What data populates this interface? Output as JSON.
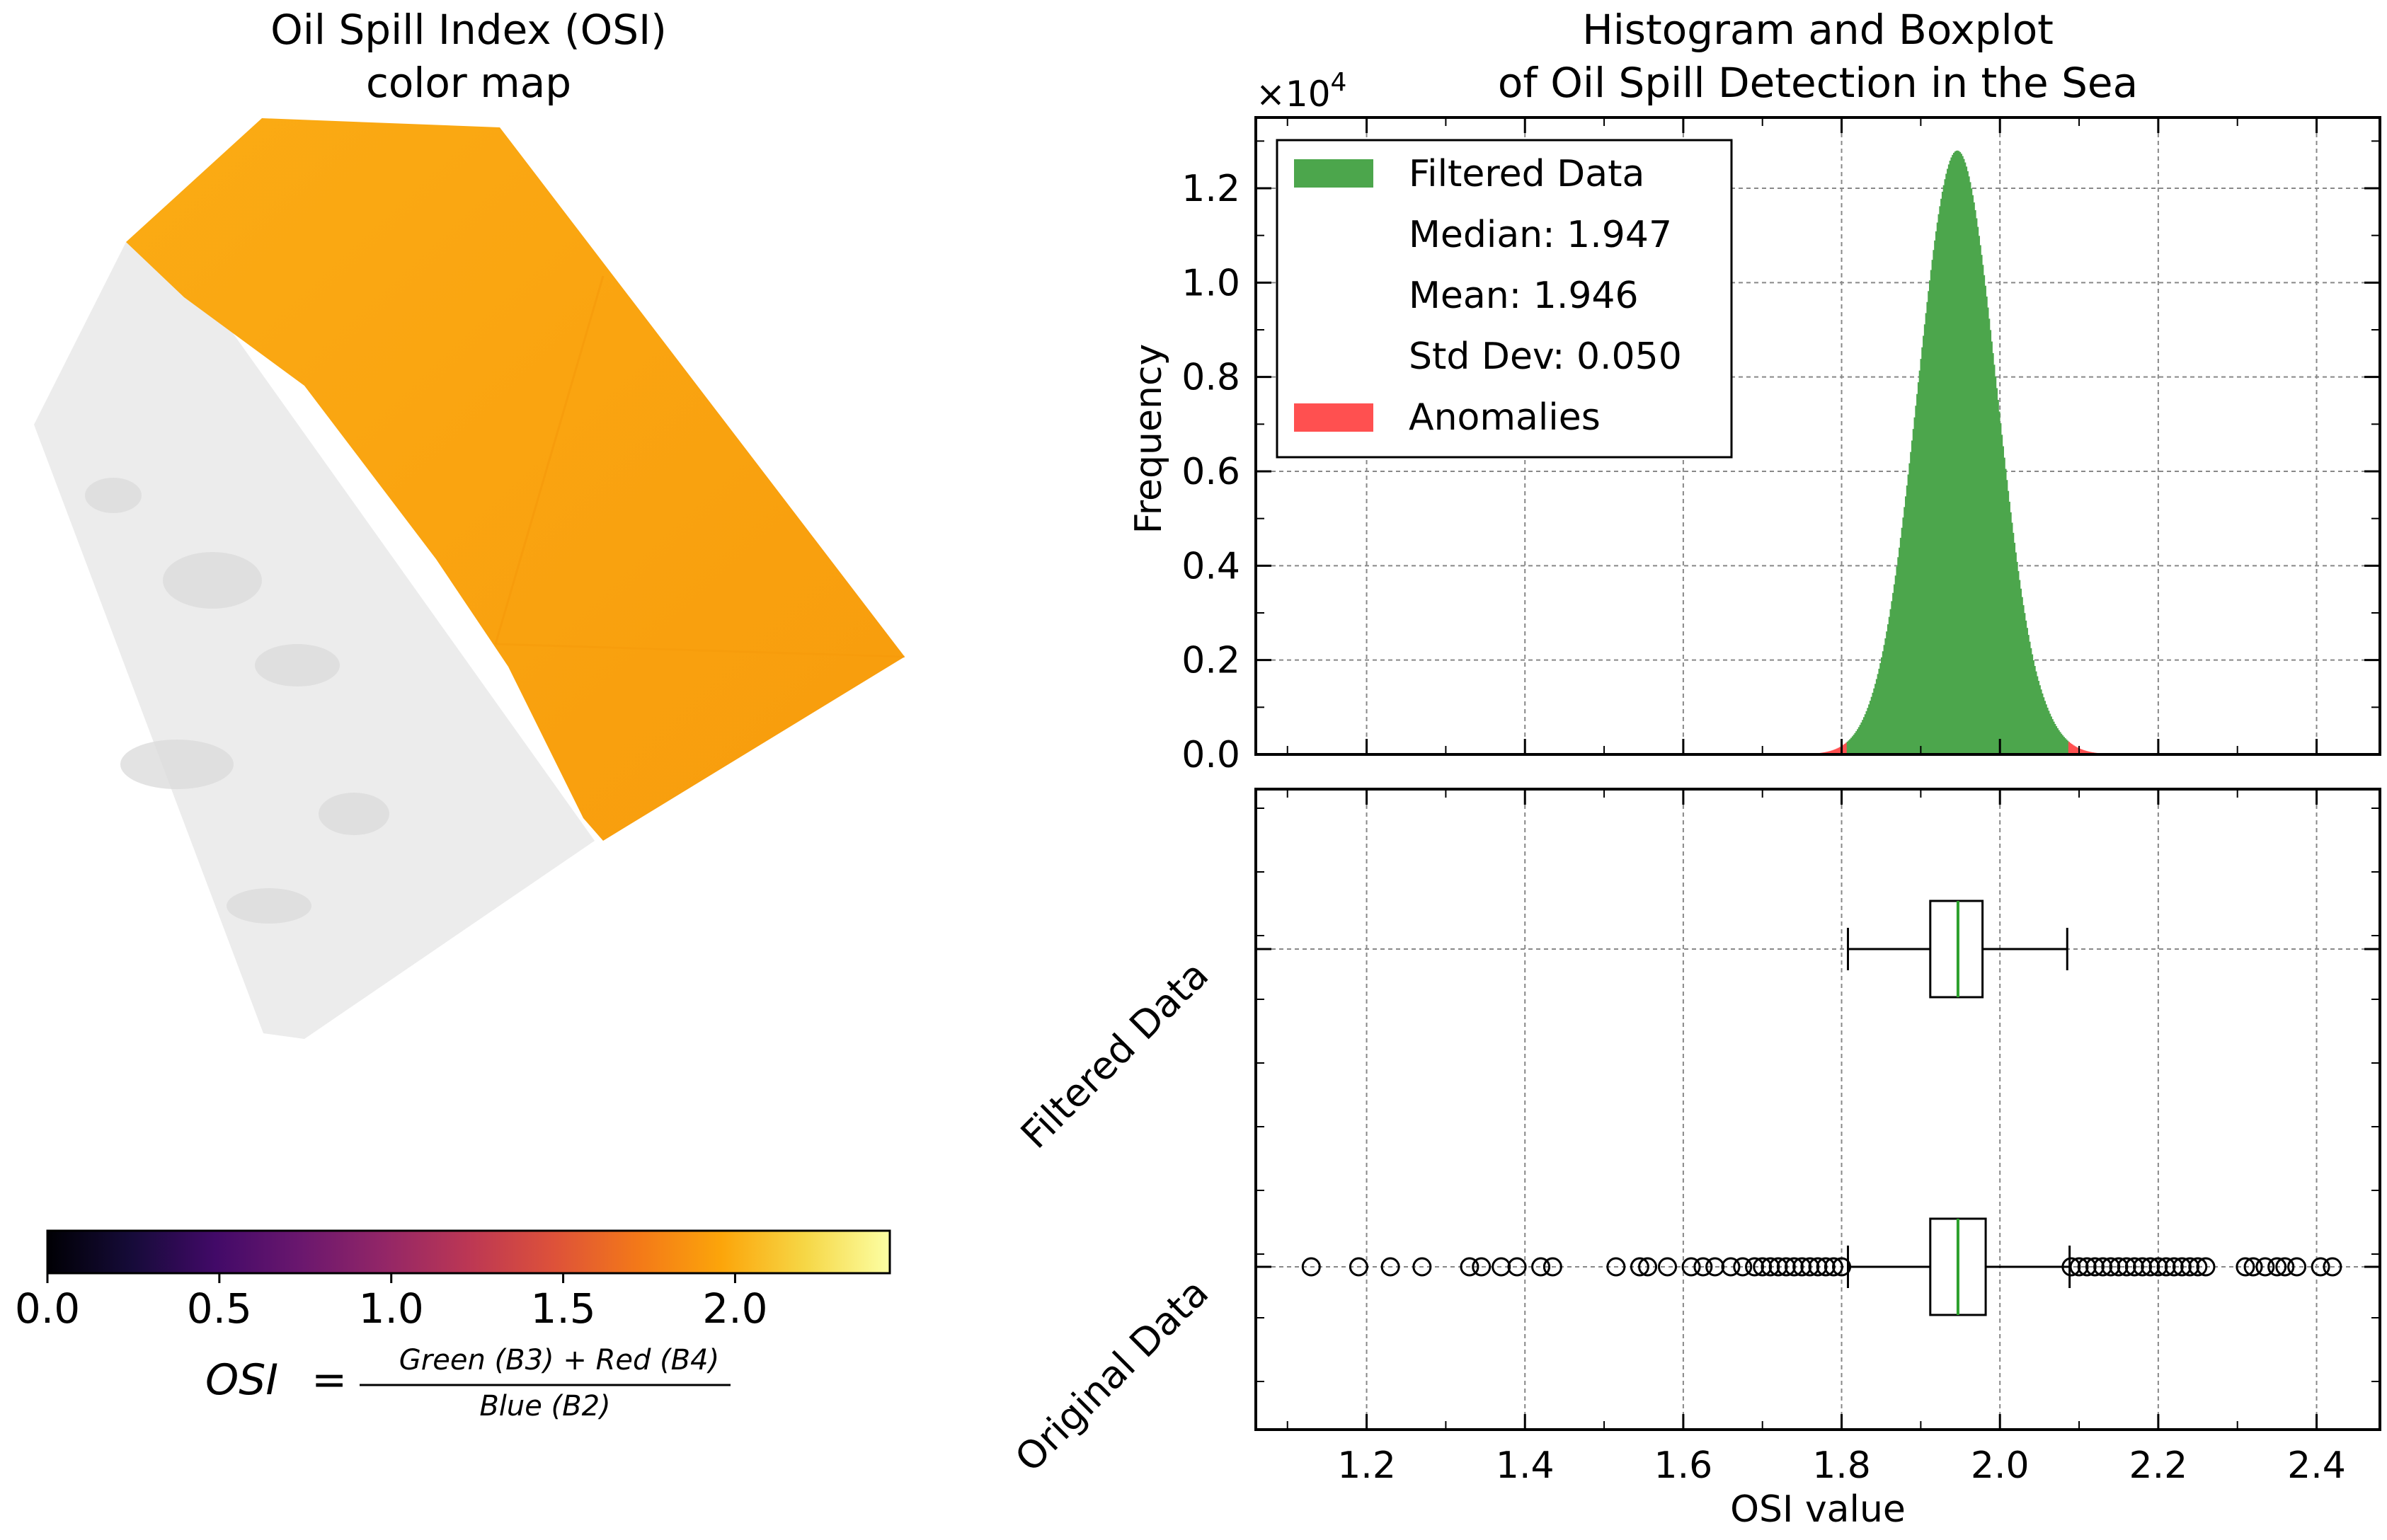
{
  "chart_data": [
    {
      "type": "heatmap",
      "title_lines": [
        "Oil Spill Index (OSI)",
        "color map"
      ],
      "colorbar": {
        "colormap": "inferno",
        "range": [
          0.0,
          2.45
        ],
        "ticks": [
          0.0,
          0.5,
          1.0,
          1.5,
          2.0
        ],
        "tick_labels": [
          "0.0",
          "0.5",
          "1.0",
          "1.5",
          "2.0"
        ]
      },
      "formula": {
        "lhs": "OSI",
        "eq": "=",
        "numerator": "Green (B3) + Red (B4)",
        "denominator": "Blue (B2)"
      },
      "colors": {
        "sea_osi": "#f9a00f",
        "land_background": "#ececec"
      }
    },
    {
      "type": "bar",
      "title_lines": [
        "Histogram and Boxplot",
        "of Oil Spill Detection in the Sea"
      ],
      "ylabel": "Frequency",
      "y_multiplier_label": "×10",
      "y_multiplier_exp": "4",
      "xlim": [
        1.06,
        2.48
      ],
      "ylim": [
        0,
        13500
      ],
      "yticks": [
        0,
        2000,
        4000,
        6000,
        8000,
        10000,
        12000
      ],
      "ytick_labels": [
        "0.0",
        "0.2",
        "0.4",
        "0.6",
        "0.8",
        "1.0",
        "1.2"
      ],
      "grid": true,
      "legend": {
        "placement": "top-left",
        "entries": [
          {
            "label": "Filtered Data",
            "color": "#4ca64c",
            "swatch": true
          },
          {
            "label": "Median: 1.947",
            "swatch": false
          },
          {
            "label": "Mean: 1.946",
            "swatch": false
          },
          {
            "label": "Std Dev: 0.050",
            "swatch": false
          },
          {
            "label": "Anomalies",
            "color": "#ff5050",
            "swatch": true
          }
        ]
      },
      "series": [
        {
          "name": "Filtered Data",
          "color": "#4ca64c",
          "mean": 1.946,
          "std": 0.05,
          "peak": 12800,
          "range": [
            1.806,
            2.086
          ]
        },
        {
          "name": "Anomalies",
          "color": "#ff5050",
          "mean": 1.946,
          "std": 0.05,
          "peak": 12800,
          "range": [
            1.76,
            2.2
          ]
        }
      ]
    },
    {
      "type": "boxplot",
      "xlabel": "OSI value",
      "xlim": [
        1.06,
        2.48
      ],
      "xticks": [
        1.2,
        1.4,
        1.6,
        1.8,
        2.0,
        2.2,
        2.4
      ],
      "xtick_labels": [
        "1.2",
        "1.4",
        "1.6",
        "1.8",
        "2.0",
        "2.2",
        "2.4"
      ],
      "grid": true,
      "median_color": "#2ca02c",
      "boxes": [
        {
          "label": "Filtered Data",
          "whisker_low": 1.808,
          "q1": 1.912,
          "median": 1.947,
          "q3": 1.978,
          "whisker_high": 2.085,
          "outliers": []
        },
        {
          "label": "Original Data",
          "whisker_low": 1.808,
          "q1": 1.912,
          "median": 1.947,
          "q3": 1.982,
          "whisker_high": 2.088,
          "outliers": [
            1.13,
            1.19,
            1.23,
            1.27,
            1.33,
            1.345,
            1.37,
            1.39,
            1.42,
            1.435,
            1.515,
            1.545,
            1.555,
            1.58,
            1.61,
            1.625,
            1.64,
            1.66,
            1.675,
            1.69,
            1.7,
            1.71,
            1.72,
            1.73,
            1.74,
            1.75,
            1.76,
            1.77,
            1.78,
            1.79,
            1.8,
            2.09,
            2.1,
            2.11,
            2.12,
            2.13,
            2.14,
            2.15,
            2.16,
            2.17,
            2.18,
            2.19,
            2.2,
            2.21,
            2.22,
            2.23,
            2.24,
            2.25,
            2.26,
            2.31,
            2.32,
            2.335,
            2.35,
            2.36,
            2.375,
            2.405,
            2.42
          ]
        }
      ]
    }
  ]
}
